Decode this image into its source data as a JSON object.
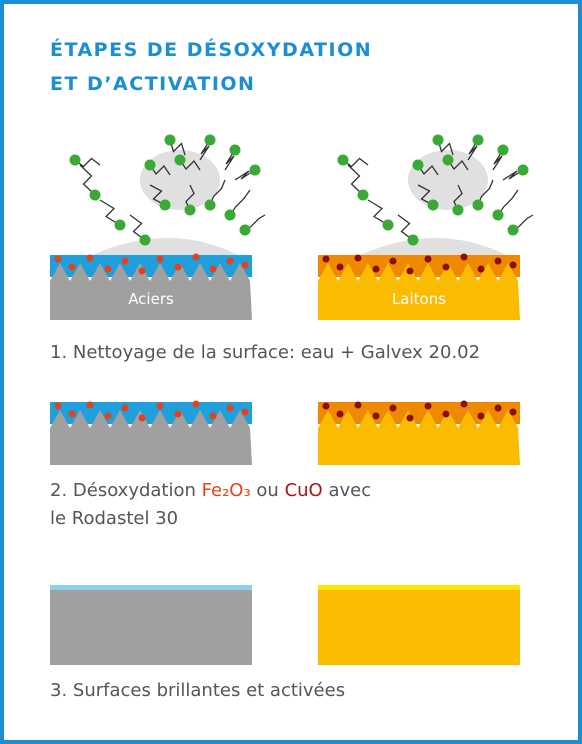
{
  "header": {
    "title_lines": [
      "ÉTAPES DE DÉSOXYDATION",
      "ET D’ACTIVATION"
    ]
  },
  "panels": {
    "labels": [
      "Aciers",
      "Laitons"
    ]
  },
  "steps": [
    {
      "text": "1. Nettoyage de la surface: eau + Galvex 20.02"
    },
    {
      "parts": [
        "2. Désoxydation ",
        "Fe₂O₃",
        " ou ",
        "CuO",
        " avec"
      ],
      "line2": "le Rodastel 30"
    },
    {
      "text": "3. Surfaces brillantes et activées"
    }
  ]
}
